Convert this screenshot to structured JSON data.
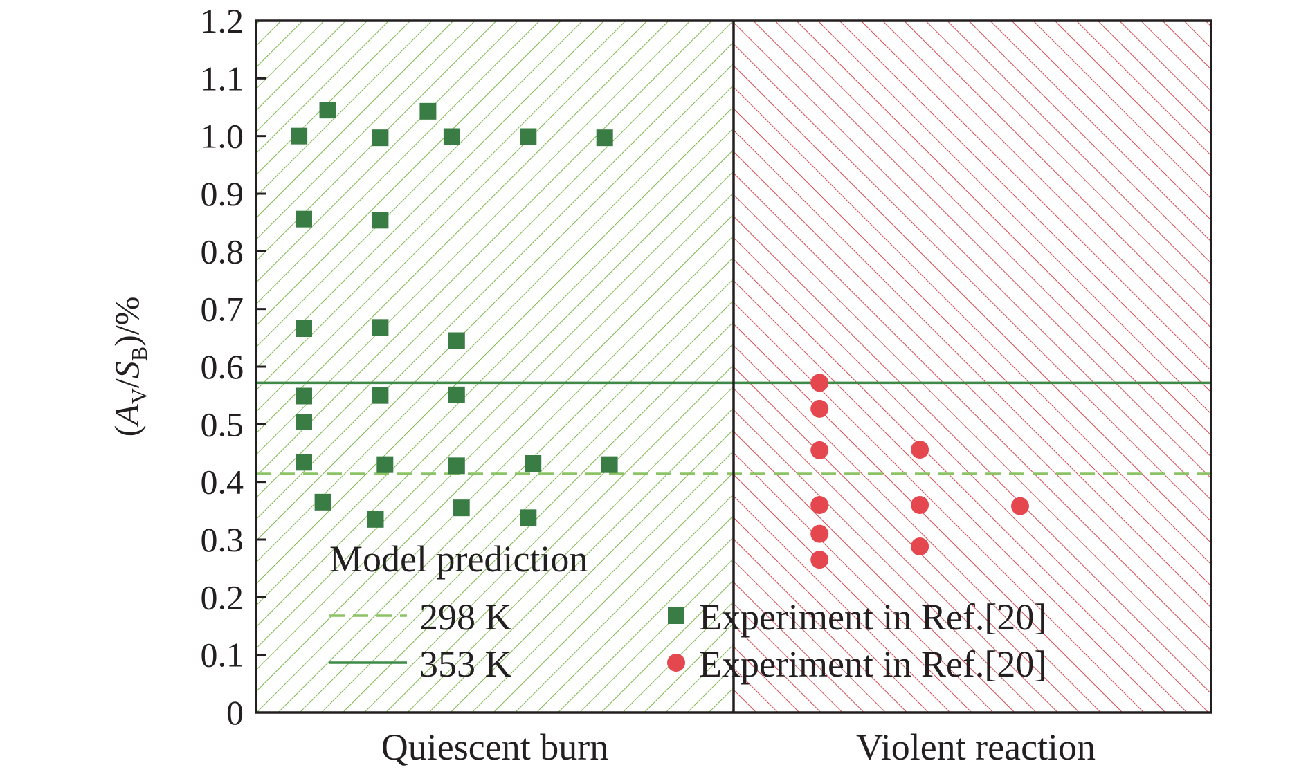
{
  "chart_data": {
    "type": "scatter",
    "ylabel": {
      "open": "(",
      "a": "A",
      "a_sub": "V",
      "slash": "/",
      "s": "S",
      "s_sub": "B",
      "close": ")/%"
    },
    "ylim": [
      0,
      1.2
    ],
    "yticks": [
      "0",
      "0.1",
      "0.2",
      "0.3",
      "0.4",
      "0.5",
      "0.6",
      "0.7",
      "0.8",
      "0.9",
      "1.0",
      "1.1",
      "1.2"
    ],
    "categories": [
      "Quiescent burn",
      "Violent reaction"
    ],
    "legend": {
      "model_title": "Model prediction",
      "model_lines": [
        {
          "name": "298 K",
          "style": "dashed",
          "value": 0.414,
          "color": "#8cc465"
        },
        {
          "name": "353 K",
          "style": "solid",
          "value": 0.572,
          "color": "#3f8a48"
        }
      ]
    },
    "regions": [
      {
        "name": "Quiescent burn",
        "x_range": [
          0,
          1
        ],
        "color": "#7ab648"
      },
      {
        "name": "Violent reaction",
        "x_range": [
          1,
          2
        ],
        "color": "#d8474c"
      }
    ],
    "series": [
      {
        "name": "Experiment in Ref.[20]",
        "marker": "square",
        "color": "#3a7d44",
        "points": [
          {
            "x": 0.09,
            "y": 1.0
          },
          {
            "x": 0.15,
            "y": 1.045
          },
          {
            "x": 0.26,
            "y": 0.997
          },
          {
            "x": 0.36,
            "y": 1.043
          },
          {
            "x": 0.41,
            "y": 0.999
          },
          {
            "x": 0.57,
            "y": 0.999
          },
          {
            "x": 0.73,
            "y": 0.997
          },
          {
            "x": 0.1,
            "y": 0.856
          },
          {
            "x": 0.26,
            "y": 0.854
          },
          {
            "x": 0.1,
            "y": 0.666
          },
          {
            "x": 0.26,
            "y": 0.668
          },
          {
            "x": 0.42,
            "y": 0.645
          },
          {
            "x": 0.1,
            "y": 0.549
          },
          {
            "x": 0.26,
            "y": 0.55
          },
          {
            "x": 0.42,
            "y": 0.551
          },
          {
            "x": 0.1,
            "y": 0.504
          },
          {
            "x": 0.1,
            "y": 0.434
          },
          {
            "x": 0.27,
            "y": 0.43
          },
          {
            "x": 0.42,
            "y": 0.428
          },
          {
            "x": 0.58,
            "y": 0.432
          },
          {
            "x": 0.74,
            "y": 0.43
          },
          {
            "x": 0.14,
            "y": 0.365
          },
          {
            "x": 0.25,
            "y": 0.335
          },
          {
            "x": 0.43,
            "y": 0.355
          },
          {
            "x": 0.57,
            "y": 0.338
          }
        ]
      },
      {
        "name": "Experiment in Ref.[20]",
        "marker": "circle",
        "color": "#e5474f",
        "points": [
          {
            "x": 1.18,
            "y": 0.572
          },
          {
            "x": 1.18,
            "y": 0.527
          },
          {
            "x": 1.18,
            "y": 0.455
          },
          {
            "x": 1.39,
            "y": 0.456
          },
          {
            "x": 1.18,
            "y": 0.36
          },
          {
            "x": 1.39,
            "y": 0.36
          },
          {
            "x": 1.6,
            "y": 0.358
          },
          {
            "x": 1.18,
            "y": 0.31
          },
          {
            "x": 1.39,
            "y": 0.288
          },
          {
            "x": 1.18,
            "y": 0.265
          }
        ]
      }
    ]
  }
}
